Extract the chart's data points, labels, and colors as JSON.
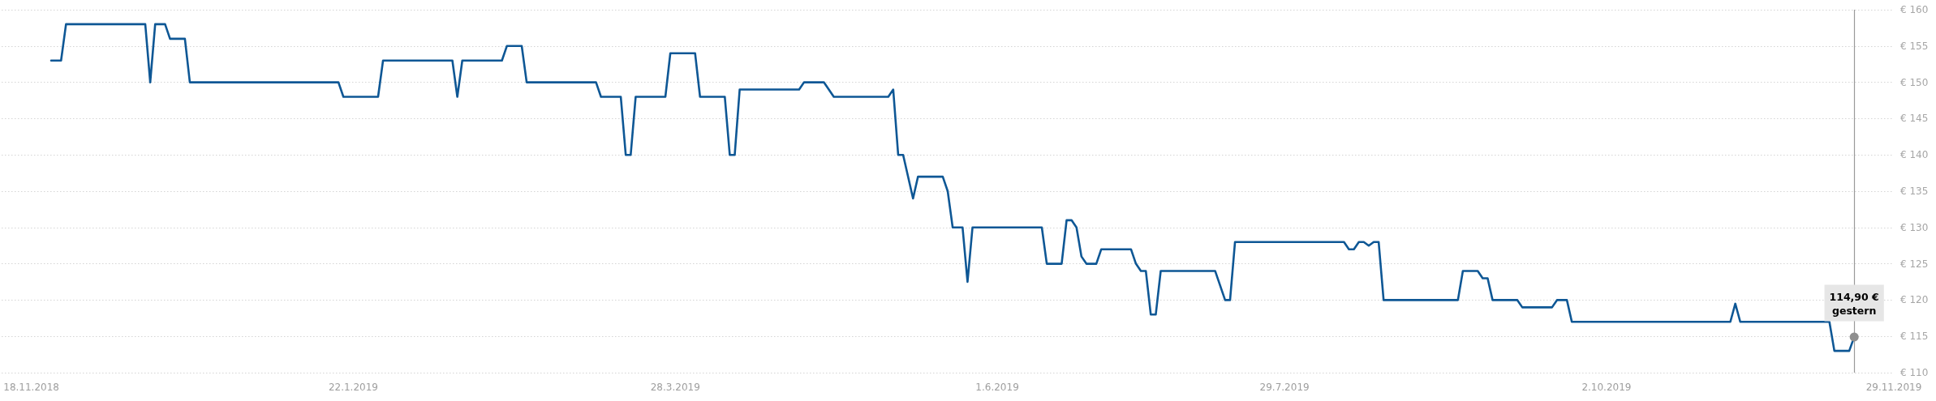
{
  "chart_data": {
    "type": "line",
    "color": "#0e5795",
    "line_style": "solid",
    "marker": "none",
    "grid": "y",
    "x": [
      "2018-11-22",
      "2018-11-24",
      "2018-11-25",
      "2018-12-11",
      "2018-12-12",
      "2018-12-13",
      "2018-12-15",
      "2018-12-16",
      "2018-12-19",
      "2018-12-20",
      "2019-01-19",
      "2019-01-20",
      "2019-01-27",
      "2019-01-28",
      "2019-02-11",
      "2019-02-12",
      "2019-02-13",
      "2019-02-21",
      "2019-02-22",
      "2019-02-25",
      "2019-02-26",
      "2019-03-12",
      "2019-03-13",
      "2019-03-17",
      "2019-03-18",
      "2019-03-19",
      "2019-03-20",
      "2019-03-26",
      "2019-03-27",
      "2019-04-01",
      "2019-04-02",
      "2019-04-07",
      "2019-04-08",
      "2019-04-09",
      "2019-04-10",
      "2019-04-22",
      "2019-04-23",
      "2019-04-27",
      "2019-04-29",
      "2019-05-10",
      "2019-05-11",
      "2019-05-12",
      "2019-05-13",
      "2019-05-15",
      "2019-05-16",
      "2019-05-21",
      "2019-05-22",
      "2019-05-23",
      "2019-05-25",
      "2019-05-26",
      "2019-05-27",
      "2019-06-10",
      "2019-06-11",
      "2019-06-14",
      "2019-06-15",
      "2019-06-16",
      "2019-06-17",
      "2019-06-18",
      "2019-06-19",
      "2019-06-21",
      "2019-06-22",
      "2019-06-28",
      "2019-06-29",
      "2019-06-30",
      "2019-07-01",
      "2019-07-02",
      "2019-07-03",
      "2019-07-04",
      "2019-07-15",
      "2019-07-17",
      "2019-07-18",
      "2019-07-19",
      "2019-08-10",
      "2019-08-11",
      "2019-08-12",
      "2019-08-13",
      "2019-08-14",
      "2019-08-15",
      "2019-08-16",
      "2019-08-17",
      "2019-08-18",
      "2019-09-02",
      "2019-09-03",
      "2019-09-06",
      "2019-09-07",
      "2019-09-08",
      "2019-09-09",
      "2019-09-14",
      "2019-09-15",
      "2019-09-21",
      "2019-09-22",
      "2019-09-24",
      "2019-09-25",
      "2019-10-27",
      "2019-10-28",
      "2019-10-29",
      "2019-11-16",
      "2019-11-17",
      "2019-11-20",
      "2019-11-21"
    ],
    "values": [
      153,
      153,
      158,
      158,
      150,
      158,
      158,
      156,
      156,
      150,
      150,
      148,
      148,
      153,
      153,
      148,
      153,
      153,
      155,
      155,
      150,
      150,
      148,
      148,
      140,
      140,
      148,
      148,
      154,
      154,
      148,
      148,
      140,
      140,
      149,
      149,
      150,
      150,
      148,
      148,
      149,
      140,
      140,
      134,
      137,
      137,
      135,
      130,
      130,
      122.5,
      130,
      130,
      125,
      125,
      131,
      131,
      130,
      126,
      125,
      125,
      127,
      127,
      125,
      124,
      124,
      118,
      118,
      124,
      124,
      120,
      120,
      128,
      128,
      127,
      127,
      128,
      128,
      127.5,
      128,
      128,
      120,
      120,
      124,
      124,
      123,
      123,
      120,
      120,
      119,
      119,
      120,
      120,
      117,
      117,
      119.5,
      117,
      117,
      113,
      113,
      114.9
    ],
    "xlim": [
      "2018-11-12",
      "2019-11-29"
    ],
    "xticks": [
      {
        "value": "2018-11-18",
        "label": "18.11.2018"
      },
      {
        "value": "2019-01-22",
        "label": "22.1.2019"
      },
      {
        "value": "2019-03-28",
        "label": "28.3.2019"
      },
      {
        "value": "2019-06-01",
        "label": "1.6.2019"
      },
      {
        "value": "2019-07-29",
        "label": "29.7.2019"
      },
      {
        "value": "2019-10-02",
        "label": "2.10.2019"
      },
      {
        "value": "2019-11-29",
        "label": "29.11.2019"
      }
    ],
    "ylim": [
      110,
      160
    ],
    "yticks": [
      {
        "value": 110,
        "label": "€ 110"
      },
      {
        "value": 115,
        "label": "€ 115"
      },
      {
        "value": 120,
        "label": "€ 120"
      },
      {
        "value": 125,
        "label": "€ 125"
      },
      {
        "value": 130,
        "label": "€ 130"
      },
      {
        "value": 135,
        "label": "€ 135"
      },
      {
        "value": 140,
        "label": "€ 140"
      },
      {
        "value": 145,
        "label": "€ 145"
      },
      {
        "value": 150,
        "label": "€ 150"
      },
      {
        "value": 155,
        "label": "€ 155"
      },
      {
        "value": 160,
        "label": "€ 160"
      }
    ],
    "ref_lines": [
      {
        "axis": "x",
        "value": "2019-11-21",
        "color": "#9a9a9a"
      }
    ],
    "annotations": [
      {
        "text": "114,90 €\ngestern",
        "x": "2019-11-21",
        "y": 114.9
      }
    ]
  }
}
